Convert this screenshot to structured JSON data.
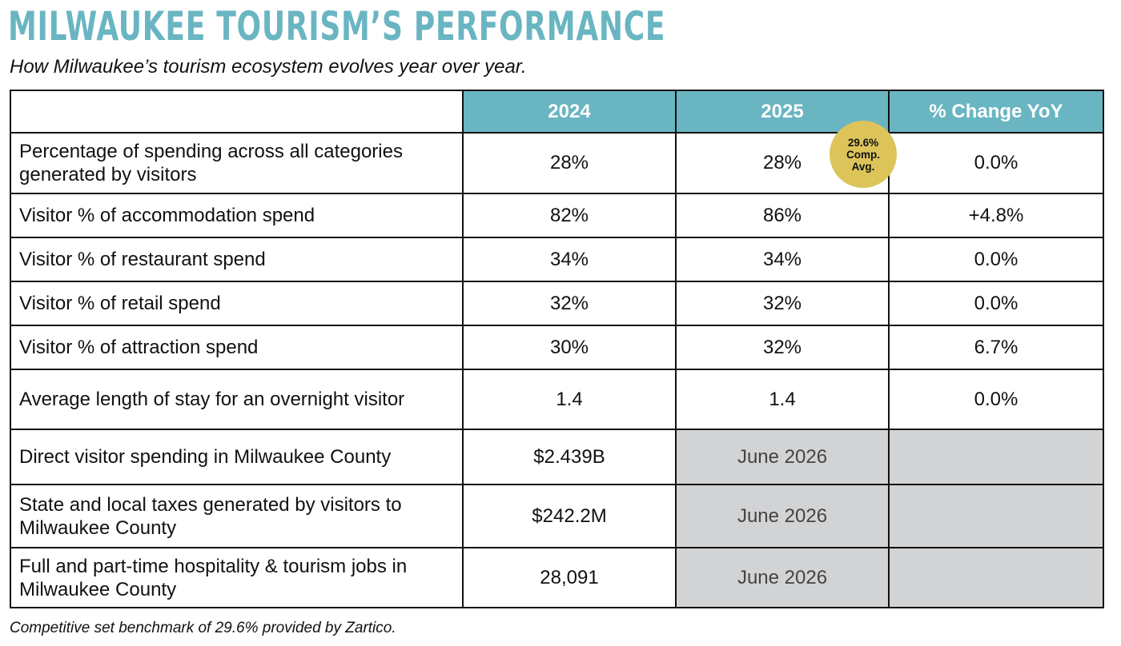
{
  "title": "MILWAUKEE TOURISM’S PERFORMANCE",
  "subtitle": "How Milwaukee’s tourism ecosystem evolves year over year.",
  "table": {
    "headers": [
      "",
      "2024",
      "2025",
      "% Change YoY"
    ],
    "rows": [
      {
        "label": "Percentage of spending across all categories generated by visitors",
        "v2024": "28%",
        "v2025": "28%",
        "change": "0.0%"
      },
      {
        "label": "Visitor % of accommodation spend",
        "v2024": "82%",
        "v2025": "86%",
        "change": "+4.8%"
      },
      {
        "label": "Visitor % of restaurant spend",
        "v2024": "34%",
        "v2025": "34%",
        "change": "0.0%"
      },
      {
        "label": "Visitor % of retail spend",
        "v2024": "32%",
        "v2025": "32%",
        "change": "0.0%"
      },
      {
        "label": "Visitor % of attraction spend",
        "v2024": "30%",
        "v2025": "32%",
        "change": "6.7%"
      },
      {
        "label": "Average length of stay for an overnight visitor",
        "v2024": "1.4",
        "v2025": "1.4",
        "change": "0.0%"
      },
      {
        "label": "Direct visitor spending in Milwaukee County",
        "v2024": "$2.439B",
        "v2025": "June 2026",
        "change": ""
      },
      {
        "label": "State and local taxes generated by visitors to Milwaukee County",
        "v2024": "$242.2M",
        "v2025": "June 2026",
        "change": ""
      },
      {
        "label": "Full and part-time hospitality & tourism jobs in Milwaukee County",
        "v2024": "28,091",
        "v2025": "June 2026",
        "change": ""
      }
    ]
  },
  "badge": {
    "line1": "29.6%",
    "line2": "Comp.",
    "line3": "Avg."
  },
  "footnote": "Competitive set benchmark of 29.6% provided by Zartico.",
  "colors": {
    "header": "#6ab5c2",
    "badge": "#dcc45a",
    "pending_cell": "#d2d3d5"
  }
}
